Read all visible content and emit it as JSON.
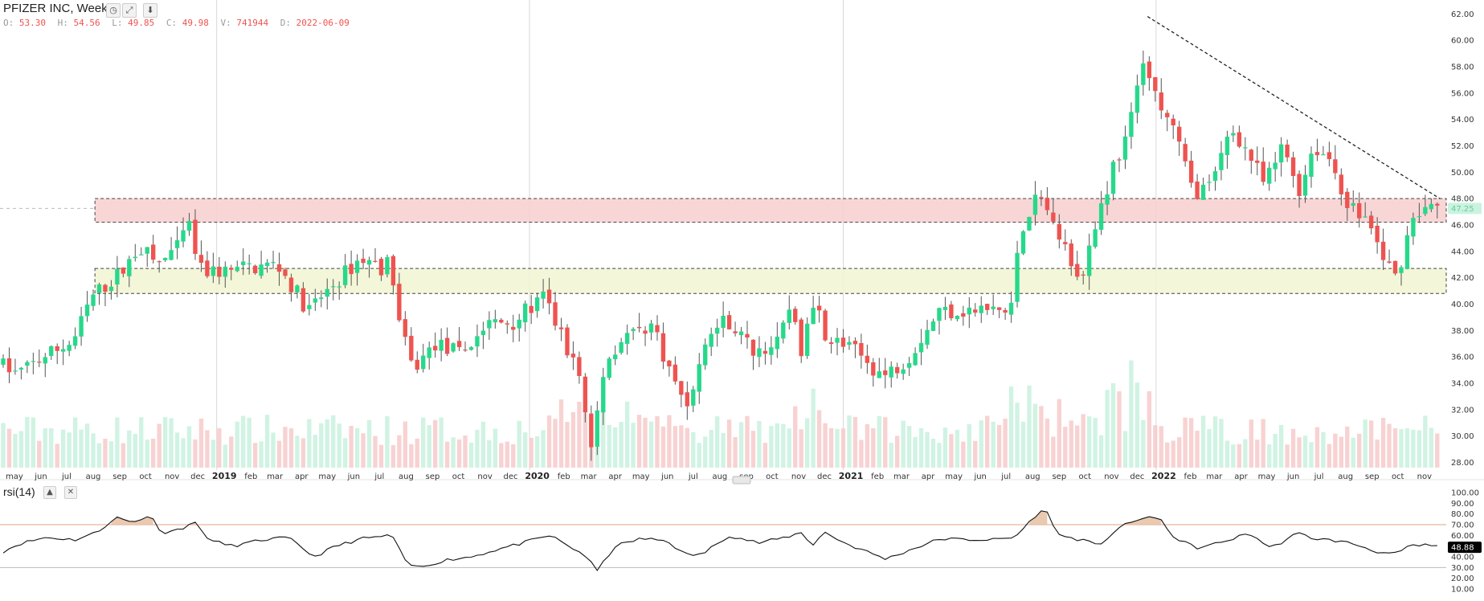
{
  "header": {
    "title": "PFIZER INC, Weekly",
    "o_label": "O:",
    "o": "53.30",
    "h_label": "H:",
    "h": "54.56",
    "l_label": "L:",
    "l": "49.85",
    "c_label": "C:",
    "c": "49.98",
    "v_label": "V:",
    "v": "741944",
    "d_label": "D:",
    "d": "2022-06-09"
  },
  "rsi_panel": {
    "title": "rsi(14)",
    "current_value": "48.88"
  },
  "price_badge": "47.25",
  "colors": {
    "up": "#26d98a",
    "down": "#ef5350",
    "resistance_zone": "#f8d0d0",
    "support_zone": "#f2f5d2",
    "rsi_line": "#111111",
    "rsi_overbought_fill": "#e8c3a8"
  },
  "chart_data": {
    "type": "candlestick",
    "title": "PFIZER INC, Weekly",
    "timeframe": "Weekly",
    "price_axis": {
      "ylim": [
        27.6,
        62.2
      ],
      "ticks": [
        28,
        30,
        32,
        34,
        36,
        38,
        40,
        42,
        44,
        46,
        48,
        50,
        52,
        54,
        56,
        58,
        60,
        62
      ]
    },
    "x_axis_labels": [
      "may",
      "jun",
      "jul",
      "aug",
      "sep",
      "oct",
      "nov",
      "dec",
      "2019",
      "feb",
      "mar",
      "apr",
      "may",
      "jun",
      "jul",
      "aug",
      "sep",
      "oct",
      "nov",
      "dec",
      "2020",
      "feb",
      "mar",
      "apr",
      "may",
      "jun",
      "jul",
      "aug",
      "sep",
      "oct",
      "nov",
      "dec",
      "2021",
      "feb",
      "mar",
      "apr",
      "may",
      "jun",
      "jul",
      "aug",
      "sep",
      "oct",
      "nov",
      "dec",
      "2022",
      "feb",
      "mar",
      "apr",
      "may",
      "jun",
      "jul",
      "aug",
      "sep",
      "oct",
      "nov"
    ],
    "anchors": [
      [
        "2018-04-27",
        35.6
      ],
      [
        "2018-05-20",
        34.7
      ],
      [
        "2018-06-20",
        36.0
      ],
      [
        "2018-07-25",
        37.2
      ],
      [
        "2018-08-15",
        40.5
      ],
      [
        "2018-09-20",
        42.5
      ],
      [
        "2018-10-10",
        44.4
      ],
      [
        "2018-10-30",
        43.0
      ],
      [
        "2018-11-25",
        44.3
      ],
      [
        "2018-12-05",
        46.3
      ],
      [
        "2018-12-20",
        42.5
      ],
      [
        "2019-01-20",
        42.5
      ],
      [
        "2019-02-20",
        42.8
      ],
      [
        "2019-03-20",
        43.0
      ],
      [
        "2019-04-25",
        39.5
      ],
      [
        "2019-05-25",
        41.5
      ],
      [
        "2019-06-25",
        43.5
      ],
      [
        "2019-07-20",
        42.8
      ],
      [
        "2019-07-30",
        43.2
      ],
      [
        "2019-08-10",
        38.2
      ],
      [
        "2019-08-25",
        35.0
      ],
      [
        "2019-09-20",
        37.0
      ],
      [
        "2019-10-20",
        36.2
      ],
      [
        "2019-11-20",
        38.5
      ],
      [
        "2019-12-20",
        38.7
      ],
      [
        "2020-01-25",
        40.5
      ],
      [
        "2020-02-15",
        37.5
      ],
      [
        "2020-03-05",
        35.0
      ],
      [
        "2020-03-20",
        29.0
      ],
      [
        "2020-04-05",
        35.5
      ],
      [
        "2020-04-25",
        37.5
      ],
      [
        "2020-05-30",
        38.5
      ],
      [
        "2020-06-25",
        34.0
      ],
      [
        "2020-07-10",
        32.5
      ],
      [
        "2020-08-05",
        37.8
      ],
      [
        "2020-08-25",
        38.9
      ],
      [
        "2020-09-25",
        36.5
      ],
      [
        "2020-10-25",
        37.0
      ],
      [
        "2020-11-10",
        40.5
      ],
      [
        "2020-11-20",
        36.0
      ],
      [
        "2020-12-05",
        40.5
      ],
      [
        "2020-12-20",
        37.5
      ],
      [
        "2021-01-20",
        36.5
      ],
      [
        "2021-02-25",
        34.5
      ],
      [
        "2021-03-25",
        36.0
      ],
      [
        "2021-04-30",
        39.5
      ],
      [
        "2021-06-20",
        39.5
      ],
      [
        "2021-07-20",
        39.5
      ],
      [
        "2021-08-05",
        46.0
      ],
      [
        "2021-08-25",
        48.5
      ],
      [
        "2021-09-20",
        44.5
      ],
      [
        "2021-10-15",
        42.0
      ],
      [
        "2021-11-05",
        47.5
      ],
      [
        "2021-11-20",
        50.5
      ],
      [
        "2021-12-10",
        54.0
      ],
      [
        "2021-12-25",
        59.0
      ],
      [
        "2022-01-10",
        55.0
      ],
      [
        "2022-01-25",
        54.0
      ],
      [
        "2022-02-20",
        48.5
      ],
      [
        "2022-03-15",
        49.0
      ],
      [
        "2022-04-05",
        53.5
      ],
      [
        "2022-04-25",
        51.5
      ],
      [
        "2022-05-15",
        49.0
      ],
      [
        "2022-06-05",
        52.0
      ],
      [
        "2022-06-25",
        48.5
      ],
      [
        "2022-07-10",
        52.0
      ],
      [
        "2022-07-30",
        51.0
      ],
      [
        "2022-08-20",
        47.5
      ],
      [
        "2022-09-10",
        46.5
      ],
      [
        "2022-09-30",
        43.5
      ],
      [
        "2022-10-15",
        42.0
      ],
      [
        "2022-11-05",
        47.0
      ],
      [
        "2022-11-20",
        47.2
      ]
    ],
    "zones": [
      {
        "name": "resistance",
        "from": 46.2,
        "to": 48.0,
        "start": "2018-08-12"
      },
      {
        "name": "support",
        "from": 40.8,
        "to": 42.7,
        "start": "2018-08-12"
      }
    ],
    "trendline": {
      "from": [
        "2021-12-22",
        61.8
      ],
      "to": [
        "2022-11-28",
        48.0
      ],
      "style": "dashed"
    },
    "rsi": {
      "period": 14,
      "ticks": [
        10,
        20,
        30,
        40,
        50,
        60,
        70,
        80,
        90,
        100
      ],
      "overbought": 70,
      "oversold": 30,
      "anchors": [
        [
          "2018-04-27",
          45
        ],
        [
          "2018-05-15",
          52
        ],
        [
          "2018-06-15",
          58
        ],
        [
          "2018-07-20",
          56
        ],
        [
          "2018-08-15",
          63
        ],
        [
          "2018-09-05",
          77
        ],
        [
          "2018-09-25",
          72
        ],
        [
          "2018-10-15",
          79
        ],
        [
          "2018-10-30",
          62
        ],
        [
          "2018-11-20",
          66
        ],
        [
          "2018-12-05",
          73
        ],
        [
          "2018-12-25",
          55
        ],
        [
          "2019-01-20",
          50
        ],
        [
          "2019-02-25",
          56
        ],
        [
          "2019-03-25",
          58
        ],
        [
          "2019-04-25",
          40
        ],
        [
          "2019-05-20",
          50
        ],
        [
          "2019-06-20",
          57
        ],
        [
          "2019-07-25",
          60
        ],
        [
          "2019-08-10",
          34
        ],
        [
          "2019-08-25",
          30
        ],
        [
          "2019-09-25",
          37
        ],
        [
          "2019-10-25",
          40
        ],
        [
          "2019-11-25",
          47
        ],
        [
          "2019-12-20",
          52
        ],
        [
          "2020-01-25",
          60
        ],
        [
          "2020-02-20",
          48
        ],
        [
          "2020-03-05",
          42
        ],
        [
          "2020-03-20",
          27
        ],
        [
          "2020-04-10",
          50
        ],
        [
          "2020-05-10",
          57
        ],
        [
          "2020-06-10",
          55
        ],
        [
          "2020-06-30",
          42
        ],
        [
          "2020-07-20",
          42
        ],
        [
          "2020-08-20",
          60
        ],
        [
          "2020-09-25",
          53
        ],
        [
          "2020-10-25",
          58
        ],
        [
          "2020-11-15",
          63
        ],
        [
          "2020-11-25",
          50
        ],
        [
          "2020-12-10",
          63
        ],
        [
          "2021-01-05",
          52
        ],
        [
          "2021-02-20",
          38
        ],
        [
          "2021-03-25",
          48
        ],
        [
          "2021-04-25",
          57
        ],
        [
          "2021-05-25",
          56
        ],
        [
          "2021-06-25",
          56
        ],
        [
          "2021-07-20",
          58
        ],
        [
          "2021-08-15",
          80
        ],
        [
          "2021-08-25",
          84
        ],
        [
          "2021-09-10",
          60
        ],
        [
          "2021-10-10",
          55
        ],
        [
          "2021-10-25",
          50
        ],
        [
          "2021-11-20",
          68
        ],
        [
          "2021-12-05",
          72
        ],
        [
          "2021-12-20",
          78
        ],
        [
          "2022-01-05",
          75
        ],
        [
          "2022-01-25",
          56
        ],
        [
          "2022-02-20",
          48
        ],
        [
          "2022-03-20",
          54
        ],
        [
          "2022-04-20",
          62
        ],
        [
          "2022-05-15",
          48
        ],
        [
          "2022-06-15",
          62
        ],
        [
          "2022-07-05",
          57
        ],
        [
          "2022-07-30",
          55
        ],
        [
          "2022-08-20",
          52
        ],
        [
          "2022-09-15",
          45
        ],
        [
          "2022-10-05",
          42
        ],
        [
          "2022-10-25",
          50
        ],
        [
          "2022-11-15",
          51
        ],
        [
          "2022-11-20",
          50
        ]
      ]
    }
  }
}
